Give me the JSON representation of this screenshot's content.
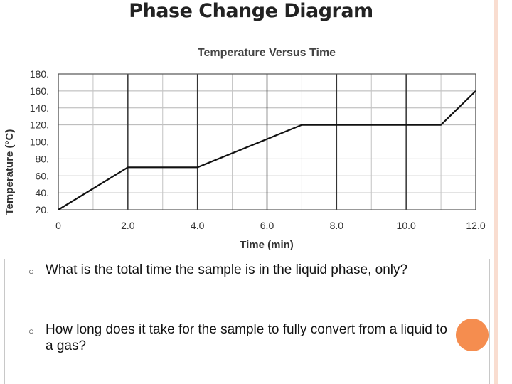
{
  "slide": {
    "title": "Phase Change Diagram",
    "questions": [
      "What is the total time the sample is in the liquid phase, only?",
      "How long does it take for the sample to fully convert from a liquid to a gas?"
    ],
    "bullet_icon": "ring-bullet-icon",
    "accent_color": "#f58d4f"
  },
  "chart_data": {
    "type": "line",
    "title": "Temperature Versus Time",
    "xlabel": "Time (min)",
    "ylabel": "Temperature (°C)",
    "xlim": [
      0,
      12
    ],
    "ylim": [
      20,
      180
    ],
    "x_ticks": [
      "0",
      "2.0",
      "4.0",
      "6.0",
      "8.0",
      "10.0",
      "12.0"
    ],
    "y_ticks": [
      "20.",
      "40.",
      "60.",
      "80.",
      "100.",
      "120.",
      "140.",
      "160.",
      "180."
    ],
    "grid": true,
    "series": [
      {
        "x": [
          0,
          2,
          4,
          7,
          11,
          12
        ],
        "y": [
          20,
          70,
          70,
          120,
          120,
          160
        ]
      }
    ]
  }
}
